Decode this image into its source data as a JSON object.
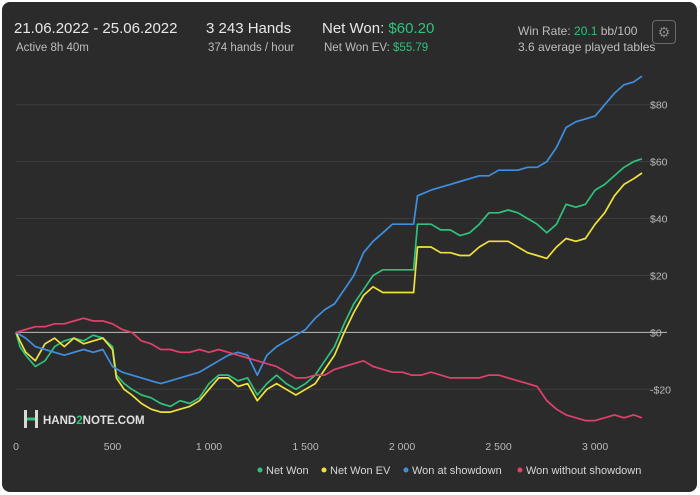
{
  "header": {
    "date_range": "21.06.2022 - 25.06.2022",
    "active": "Active 8h 40m",
    "hands": "3 243 Hands",
    "hands_per_hour": "374 hands / hour",
    "net_won_label": "Net Won: ",
    "net_won_value": "$60.20",
    "net_won_ev_label": "Net Won  EV: ",
    "net_won_ev_value": "$55.79",
    "win_rate_label": "Win Rate: ",
    "win_rate_value": "20.1",
    "win_rate_unit": " bb/100",
    "tables": "3.6 average played tables"
  },
  "toolbar": {
    "settings_icon": "gear-icon"
  },
  "brand": {
    "logo_text_a": "HAND",
    "logo_text_b": "2",
    "logo_text_c": "NOTE.COM"
  },
  "colors": {
    "background": "#2b2b2b",
    "net_won": "#2ec27e",
    "net_won_ev": "#f0e23a",
    "won_showdown": "#3f8fe0",
    "won_without_showdown": "#e0416c",
    "accent": "#2ec27e"
  },
  "chart_data": {
    "type": "line",
    "xlim": [
      0,
      3243
    ],
    "ylim": [
      -35,
      95
    ],
    "x_ticks": [
      0,
      500,
      1000,
      1500,
      2000,
      2500,
      3000
    ],
    "x_tick_labels": [
      "0",
      "500",
      "1 000",
      "1 500",
      "2 000",
      "2 500",
      "3 000"
    ],
    "y_ticks": [
      -20,
      0,
      20,
      40,
      60,
      80
    ],
    "y_tick_labels": [
      "-$20",
      "$0",
      "$20",
      "$40",
      "$60",
      "$80"
    ],
    "zero_line": 0,
    "grid": true,
    "legend_position": "bottom-right",
    "series": [
      {
        "name": "Net Won",
        "color": "#2ec27e",
        "points": [
          [
            0,
            0
          ],
          [
            20,
            -5
          ],
          [
            50,
            -8
          ],
          [
            100,
            -12
          ],
          [
            150,
            -10
          ],
          [
            200,
            -5
          ],
          [
            250,
            -3
          ],
          [
            300,
            -2
          ],
          [
            350,
            -3
          ],
          [
            400,
            -1
          ],
          [
            450,
            -2
          ],
          [
            500,
            -5
          ],
          [
            520,
            -15
          ],
          [
            560,
            -18
          ],
          [
            600,
            -20
          ],
          [
            650,
            -22
          ],
          [
            700,
            -23
          ],
          [
            750,
            -25
          ],
          [
            800,
            -26
          ],
          [
            850,
            -24
          ],
          [
            900,
            -25
          ],
          [
            950,
            -23
          ],
          [
            1000,
            -18
          ],
          [
            1050,
            -15
          ],
          [
            1100,
            -15
          ],
          [
            1150,
            -17
          ],
          [
            1200,
            -16
          ],
          [
            1250,
            -22
          ],
          [
            1300,
            -18
          ],
          [
            1350,
            -15
          ],
          [
            1400,
            -18
          ],
          [
            1450,
            -20
          ],
          [
            1500,
            -18
          ],
          [
            1550,
            -15
          ],
          [
            1600,
            -10
          ],
          [
            1650,
            -5
          ],
          [
            1700,
            3
          ],
          [
            1750,
            10
          ],
          [
            1800,
            15
          ],
          [
            1850,
            20
          ],
          [
            1900,
            22
          ],
          [
            1950,
            22
          ],
          [
            2000,
            22
          ],
          [
            2060,
            22
          ],
          [
            2080,
            38
          ],
          [
            2150,
            38
          ],
          [
            2200,
            36
          ],
          [
            2250,
            36
          ],
          [
            2300,
            34
          ],
          [
            2350,
            35
          ],
          [
            2400,
            38
          ],
          [
            2450,
            42
          ],
          [
            2500,
            42
          ],
          [
            2550,
            43
          ],
          [
            2600,
            42
          ],
          [
            2650,
            40
          ],
          [
            2700,
            38
          ],
          [
            2750,
            35
          ],
          [
            2800,
            38
          ],
          [
            2850,
            45
          ],
          [
            2900,
            44
          ],
          [
            2950,
            45
          ],
          [
            3000,
            50
          ],
          [
            3050,
            52
          ],
          [
            3100,
            55
          ],
          [
            3150,
            58
          ],
          [
            3200,
            60
          ],
          [
            3243,
            61
          ]
        ]
      },
      {
        "name": "Net Won  EV",
        "color": "#f0e23a",
        "points": [
          [
            0,
            0
          ],
          [
            20,
            -3
          ],
          [
            50,
            -7
          ],
          [
            100,
            -10
          ],
          [
            150,
            -4
          ],
          [
            200,
            -2
          ],
          [
            250,
            -5
          ],
          [
            300,
            -2
          ],
          [
            350,
            -4
          ],
          [
            400,
            -3
          ],
          [
            450,
            -2
          ],
          [
            500,
            -6
          ],
          [
            520,
            -16
          ],
          [
            560,
            -20
          ],
          [
            600,
            -22
          ],
          [
            650,
            -25
          ],
          [
            700,
            -27
          ],
          [
            750,
            -28
          ],
          [
            800,
            -28
          ],
          [
            850,
            -27
          ],
          [
            900,
            -26
          ],
          [
            950,
            -24
          ],
          [
            1000,
            -20
          ],
          [
            1050,
            -16
          ],
          [
            1100,
            -16
          ],
          [
            1150,
            -19
          ],
          [
            1200,
            -18
          ],
          [
            1250,
            -24
          ],
          [
            1300,
            -20
          ],
          [
            1350,
            -18
          ],
          [
            1400,
            -20
          ],
          [
            1450,
            -22
          ],
          [
            1500,
            -20
          ],
          [
            1550,
            -18
          ],
          [
            1600,
            -13
          ],
          [
            1650,
            -8
          ],
          [
            1700,
            0
          ],
          [
            1750,
            7
          ],
          [
            1800,
            13
          ],
          [
            1850,
            16
          ],
          [
            1900,
            14
          ],
          [
            1950,
            14
          ],
          [
            2000,
            14
          ],
          [
            2060,
            14
          ],
          [
            2080,
            30
          ],
          [
            2150,
            30
          ],
          [
            2200,
            28
          ],
          [
            2250,
            28
          ],
          [
            2300,
            27
          ],
          [
            2350,
            27
          ],
          [
            2400,
            30
          ],
          [
            2450,
            32
          ],
          [
            2500,
            32
          ],
          [
            2550,
            32
          ],
          [
            2600,
            30
          ],
          [
            2650,
            28
          ],
          [
            2700,
            27
          ],
          [
            2750,
            26
          ],
          [
            2800,
            30
          ],
          [
            2850,
            33
          ],
          [
            2900,
            32
          ],
          [
            2950,
            33
          ],
          [
            3000,
            38
          ],
          [
            3050,
            42
          ],
          [
            3100,
            48
          ],
          [
            3150,
            52
          ],
          [
            3200,
            54
          ],
          [
            3243,
            56
          ]
        ]
      },
      {
        "name": "Won at showdown",
        "color": "#3f8fe0",
        "points": [
          [
            0,
            0
          ],
          [
            50,
            -2
          ],
          [
            100,
            -5
          ],
          [
            150,
            -6
          ],
          [
            200,
            -7
          ],
          [
            250,
            -8
          ],
          [
            300,
            -7
          ],
          [
            350,
            -6
          ],
          [
            400,
            -7
          ],
          [
            450,
            -6
          ],
          [
            500,
            -12
          ],
          [
            550,
            -14
          ],
          [
            600,
            -15
          ],
          [
            650,
            -16
          ],
          [
            700,
            -17
          ],
          [
            750,
            -18
          ],
          [
            800,
            -17
          ],
          [
            850,
            -16
          ],
          [
            900,
            -15
          ],
          [
            950,
            -14
          ],
          [
            1000,
            -12
          ],
          [
            1050,
            -10
          ],
          [
            1100,
            -8
          ],
          [
            1150,
            -7
          ],
          [
            1200,
            -8
          ],
          [
            1250,
            -15
          ],
          [
            1300,
            -8
          ],
          [
            1350,
            -5
          ],
          [
            1400,
            -3
          ],
          [
            1450,
            -1
          ],
          [
            1500,
            1
          ],
          [
            1550,
            5
          ],
          [
            1600,
            8
          ],
          [
            1650,
            10
          ],
          [
            1700,
            15
          ],
          [
            1750,
            20
          ],
          [
            1800,
            28
          ],
          [
            1850,
            32
          ],
          [
            1900,
            35
          ],
          [
            1950,
            38
          ],
          [
            2000,
            38
          ],
          [
            2060,
            38
          ],
          [
            2080,
            48
          ],
          [
            2150,
            50
          ],
          [
            2200,
            51
          ],
          [
            2250,
            52
          ],
          [
            2300,
            53
          ],
          [
            2350,
            54
          ],
          [
            2400,
            55
          ],
          [
            2450,
            55
          ],
          [
            2500,
            57
          ],
          [
            2550,
            57
          ],
          [
            2600,
            57
          ],
          [
            2650,
            58
          ],
          [
            2700,
            58
          ],
          [
            2750,
            60
          ],
          [
            2800,
            65
          ],
          [
            2850,
            72
          ],
          [
            2900,
            74
          ],
          [
            2950,
            75
          ],
          [
            3000,
            76
          ],
          [
            3050,
            80
          ],
          [
            3100,
            84
          ],
          [
            3150,
            87
          ],
          [
            3200,
            88
          ],
          [
            3243,
            90
          ]
        ]
      },
      {
        "name": "Won without showdown",
        "color": "#e0416c",
        "points": [
          [
            0,
            0
          ],
          [
            50,
            1
          ],
          [
            100,
            2
          ],
          [
            150,
            2
          ],
          [
            200,
            3
          ],
          [
            250,
            3
          ],
          [
            300,
            4
          ],
          [
            350,
            5
          ],
          [
            400,
            4
          ],
          [
            450,
            4
          ],
          [
            500,
            3
          ],
          [
            550,
            1
          ],
          [
            600,
            0
          ],
          [
            650,
            -3
          ],
          [
            700,
            -4
          ],
          [
            750,
            -6
          ],
          [
            800,
            -6
          ],
          [
            850,
            -7
          ],
          [
            900,
            -7
          ],
          [
            950,
            -6
          ],
          [
            1000,
            -7
          ],
          [
            1050,
            -6
          ],
          [
            1100,
            -7
          ],
          [
            1150,
            -8
          ],
          [
            1200,
            -9
          ],
          [
            1250,
            -10
          ],
          [
            1300,
            -11
          ],
          [
            1350,
            -12
          ],
          [
            1400,
            -14
          ],
          [
            1450,
            -16
          ],
          [
            1500,
            -16
          ],
          [
            1550,
            -15
          ],
          [
            1600,
            -15
          ],
          [
            1650,
            -13
          ],
          [
            1700,
            -12
          ],
          [
            1750,
            -11
          ],
          [
            1800,
            -10
          ],
          [
            1850,
            -12
          ],
          [
            1900,
            -13
          ],
          [
            1950,
            -14
          ],
          [
            2000,
            -14
          ],
          [
            2050,
            -15
          ],
          [
            2100,
            -15
          ],
          [
            2150,
            -14
          ],
          [
            2200,
            -15
          ],
          [
            2250,
            -16
          ],
          [
            2300,
            -16
          ],
          [
            2350,
            -16
          ],
          [
            2400,
            -16
          ],
          [
            2450,
            -15
          ],
          [
            2500,
            -15
          ],
          [
            2550,
            -16
          ],
          [
            2600,
            -17
          ],
          [
            2650,
            -18
          ],
          [
            2700,
            -19
          ],
          [
            2750,
            -24
          ],
          [
            2800,
            -27
          ],
          [
            2850,
            -29
          ],
          [
            2900,
            -30
          ],
          [
            2950,
            -31
          ],
          [
            3000,
            -31
          ],
          [
            3050,
            -30
          ],
          [
            3100,
            -29
          ],
          [
            3150,
            -30
          ],
          [
            3200,
            -29
          ],
          [
            3243,
            -30
          ]
        ]
      }
    ]
  }
}
